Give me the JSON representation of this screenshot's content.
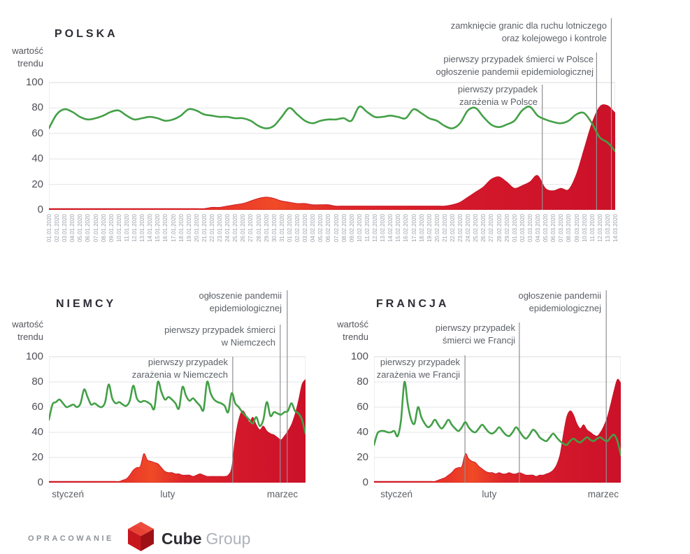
{
  "chart_data": [
    {
      "type": "area",
      "title": "POLSKA",
      "ylabel": "wartość trendu",
      "ylabel_lines": [
        "wartość",
        "trendu"
      ],
      "ylim": [
        0,
        100
      ],
      "yticks": [
        0,
        20,
        40,
        60,
        80,
        100
      ],
      "x_labels": [
        "01.01.2020",
        "02.01.2020",
        "03.01.2020",
        "04.01.2020",
        "05.01.2020",
        "06.01.2020",
        "07.01.2020",
        "08.01.2020",
        "09.01.2020",
        "10.01.2020",
        "11.01.2020",
        "12.01.2020",
        "13.01.2020",
        "14.01.2020",
        "15.01.2020",
        "16.01.2020",
        "17.01.2020",
        "18.01.2020",
        "19.01.2020",
        "20.01.2020",
        "21.01.2020",
        "22.01.2020",
        "23.01.2020",
        "24.01.2020",
        "25.01.2020",
        "26.01.2020",
        "27.01.2020",
        "28.01.2020",
        "29.01.2020",
        "30.01.2020",
        "31.01.2020",
        "01.02.2020",
        "02.02.2020",
        "03.02.2020",
        "04.02.2020",
        "05.02.2020",
        "06.02.2020",
        "07.02.2020",
        "08.02.2020",
        "09.02.2020",
        "10.02.2020",
        "11.02.2020",
        "12.02.2020",
        "13.02.2020",
        "14.02.2020",
        "15.02.2020",
        "16.02.2020",
        "17.02.2020",
        "18.02.2020",
        "19.02.2020",
        "20.02.2020",
        "21.02.2020",
        "22.02.2020",
        "23.02.2020",
        "24.02.2020",
        "25.02.2020",
        "26.02.2020",
        "27.02.2020",
        "28.02.2020",
        "29.02.2020",
        "01.03.2020",
        "02.03.2020",
        "03.03.2020",
        "04.03.2020",
        "05.03.2020",
        "06.03.2020",
        "07.03.2020",
        "08.03.2020",
        "09.03.2020",
        "10.03.2020",
        "11.03.2020",
        "12.03.2020",
        "13.03.2020",
        "14.03.2020"
      ],
      "series": [
        {
          "name": "trend",
          "style": "line",
          "color": "#43a047",
          "values": [
            64,
            75,
            79,
            77,
            73,
            71,
            72,
            74,
            77,
            78,
            74,
            71,
            72,
            73,
            72,
            70,
            71,
            74,
            79,
            78,
            75,
            74,
            73,
            73,
            72,
            72,
            70,
            66,
            64,
            66,
            73,
            80,
            75,
            70,
            68,
            70,
            71,
            71,
            72,
            70,
            81,
            77,
            73,
            73,
            74,
            73,
            72,
            79,
            76,
            72,
            70,
            66,
            64,
            68,
            78,
            80,
            73,
            67,
            65,
            67,
            70,
            78,
            81,
            74,
            71,
            69,
            68,
            70,
            75,
            76,
            68,
            57,
            53,
            46
          ]
        },
        {
          "name": "area-red",
          "style": "area",
          "color": "#d7202c",
          "values": [
            1,
            1,
            1,
            1,
            1,
            1,
            1,
            1,
            1,
            1,
            1,
            1,
            1,
            1,
            1,
            1,
            1,
            1,
            1,
            1,
            1,
            2,
            2,
            3,
            4,
            5,
            7,
            9,
            10,
            9,
            7,
            6,
            5,
            5,
            4,
            4,
            4,
            3,
            3,
            3,
            3,
            3,
            3,
            3,
            3,
            3,
            3,
            3,
            3,
            3,
            3,
            3,
            4,
            6,
            10,
            14,
            18,
            24,
            26,
            22,
            17,
            19,
            22,
            27,
            17,
            15,
            17,
            16,
            28,
            48,
            68,
            81,
            82,
            76
          ]
        }
      ],
      "annotations": [
        {
          "lines": [
            "zamknięcie granic dla ruchu lotniczego",
            "oraz kolejowego i kontrole"
          ],
          "x_index": 72.5
        },
        {
          "lines": [
            "pierwszy przypadek śmierci w Polsce",
            "ogłoszenie pandemii epidemiologicznej"
          ],
          "x_index": 70.6
        },
        {
          "lines": [
            "pierwszy przypadek",
            "zarażenia w Polsce"
          ],
          "x_index": 63.6
        }
      ]
    },
    {
      "type": "area",
      "title": "NIEMCY",
      "ylabel": "wartość trendu",
      "ylabel_lines": [
        "wartość",
        "trendu"
      ],
      "ylim": [
        0,
        100
      ],
      "yticks": [
        0,
        20,
        40,
        60,
        80,
        100
      ],
      "x_labels": [
        "styczeń",
        "luty",
        "marzec"
      ],
      "series": [
        {
          "name": "trend",
          "style": "line",
          "color": "#43a047",
          "values": [
            50,
            62,
            64,
            66,
            63,
            60,
            61,
            62,
            60,
            63,
            74,
            68,
            62,
            63,
            61,
            60,
            64,
            78,
            67,
            63,
            64,
            62,
            61,
            65,
            77,
            67,
            64,
            65,
            64,
            62,
            59,
            80,
            72,
            66,
            68,
            66,
            63,
            59,
            76,
            69,
            65,
            67,
            64,
            61,
            58,
            80,
            71,
            66,
            64,
            63,
            61,
            56,
            71,
            63,
            60,
            56,
            53,
            50,
            47,
            52,
            45,
            50,
            64,
            53,
            56,
            55,
            54,
            56,
            57,
            63,
            57,
            55,
            50,
            39
          ]
        },
        {
          "name": "area-red",
          "style": "area",
          "color": "#d7202c",
          "values": [
            1,
            1,
            1,
            1,
            1,
            1,
            1,
            1,
            1,
            1,
            1,
            1,
            1,
            1,
            1,
            1,
            1,
            1,
            1,
            1,
            1,
            2,
            3,
            6,
            10,
            12,
            13,
            23,
            18,
            17,
            16,
            15,
            12,
            9,
            8,
            8,
            7,
            7,
            6,
            6,
            6,
            5,
            6,
            7,
            6,
            5,
            5,
            5,
            5,
            5,
            5,
            6,
            12,
            35,
            50,
            57,
            54,
            48,
            52,
            46,
            42,
            45,
            41,
            39,
            38,
            36,
            34,
            37,
            41,
            46,
            54,
            65,
            78,
            82
          ]
        }
      ],
      "annotations": [
        {
          "lines": [
            "ogłoszenie pandemii",
            "epidemiologicznej"
          ],
          "x_index": 67.8
        },
        {
          "lines": [
            "pierwszy przypadek śmierci",
            "w Niemczech"
          ],
          "x_index": 65.8
        },
        {
          "lines": [
            "pierwszy przypadek",
            "zarażenia w Niemczech"
          ],
          "x_index": 52.3
        }
      ]
    },
    {
      "type": "area",
      "title": "FRANCJA",
      "ylabel": "wartość trendu",
      "ylabel_lines": [
        "wartość",
        "trendu"
      ],
      "ylim": [
        0,
        100
      ],
      "yticks": [
        0,
        20,
        40,
        60,
        80,
        100
      ],
      "x_labels": [
        "styczeń",
        "luty",
        "marzec"
      ],
      "series": [
        {
          "name": "trend",
          "style": "line",
          "color": "#43a047",
          "values": [
            30,
            39,
            41,
            41,
            40,
            40,
            41,
            37,
            50,
            80,
            62,
            50,
            47,
            60,
            52,
            47,
            44,
            46,
            50,
            46,
            43,
            46,
            50,
            46,
            43,
            41,
            44,
            48,
            44,
            41,
            40,
            43,
            46,
            43,
            40,
            39,
            41,
            44,
            41,
            38,
            37,
            40,
            44,
            41,
            37,
            35,
            38,
            42,
            40,
            36,
            34,
            33,
            36,
            39,
            36,
            33,
            31,
            30,
            33,
            35,
            33,
            32,
            34,
            36,
            34,
            33,
            35,
            36,
            34,
            33,
            36,
            38,
            33,
            22
          ]
        },
        {
          "name": "area-red",
          "style": "area",
          "color": "#d7202c",
          "values": [
            1,
            1,
            1,
            1,
            1,
            1,
            1,
            1,
            1,
            1,
            1,
            1,
            1,
            1,
            1,
            1,
            1,
            1,
            1,
            2,
            3,
            4,
            6,
            8,
            11,
            12,
            13,
            23,
            19,
            17,
            16,
            13,
            11,
            9,
            8,
            8,
            7,
            8,
            7,
            7,
            8,
            7,
            7,
            8,
            7,
            6,
            6,
            6,
            5,
            6,
            6,
            7,
            8,
            10,
            14,
            22,
            38,
            52,
            57,
            54,
            47,
            43,
            46,
            42,
            40,
            38,
            37,
            40,
            45,
            52,
            62,
            73,
            82,
            79
          ]
        }
      ],
      "annotations": [
        {
          "lines": [
            "ogłoszenie pandemii",
            "epidemiologicznej"
          ],
          "x_index": 68.7
        },
        {
          "lines": [
            "pierwszy przypadek",
            "śmierci we Francji"
          ],
          "x_index": 43.0
        },
        {
          "lines": [
            "pierwszy przypadek",
            "zarażenia we Francji"
          ],
          "x_index": 26.9
        }
      ]
    }
  ],
  "colors": {
    "trend_green": "#43a047",
    "area_red": "#d7202c",
    "annotation_line": "#8f8f93"
  },
  "footer": {
    "label": "OPRACOWANIE",
    "brand_bold": "Cube",
    "brand_light": "Group"
  }
}
